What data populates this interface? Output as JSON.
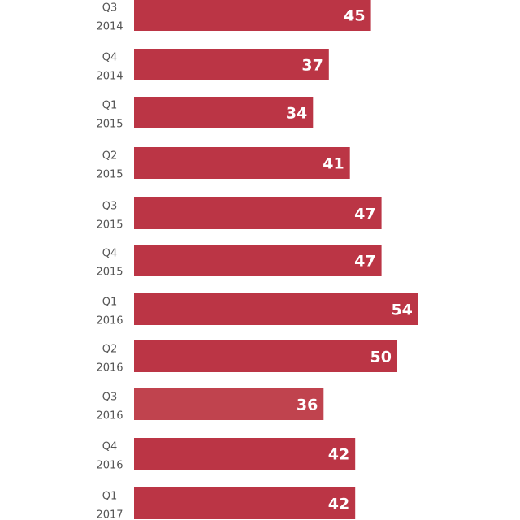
{
  "chart_data": {
    "type": "bar",
    "orientation": "horizontal",
    "categories": [
      [
        "Q3",
        "2014"
      ],
      [
        "Q4",
        "2014"
      ],
      [
        "Q1",
        "2015"
      ],
      [
        "Q2",
        "2015"
      ],
      [
        "Q3",
        "2015"
      ],
      [
        "Q4",
        "2015"
      ],
      [
        "Q1",
        "2016"
      ],
      [
        "Q2",
        "2016"
      ],
      [
        "Q3",
        "2016"
      ],
      [
        "Q4",
        "2016"
      ],
      [
        "Q1",
        "2017"
      ]
    ],
    "values": [
      45,
      37,
      34,
      41,
      47,
      47,
      54,
      50,
      36,
      42,
      42
    ],
    "value_labels": [
      "45",
      "37",
      "34",
      "41",
      "47",
      "47",
      "54",
      "50",
      "36",
      "42",
      "42"
    ],
    "highlighted_index": 8,
    "colors": {
      "bar": "#bb3545",
      "bar_highlight": "#c0434e",
      "value_text": "#ffffff",
      "category_text": "#555555"
    },
    "title": "",
    "xlabel": "",
    "ylabel": "",
    "grid": false
  }
}
